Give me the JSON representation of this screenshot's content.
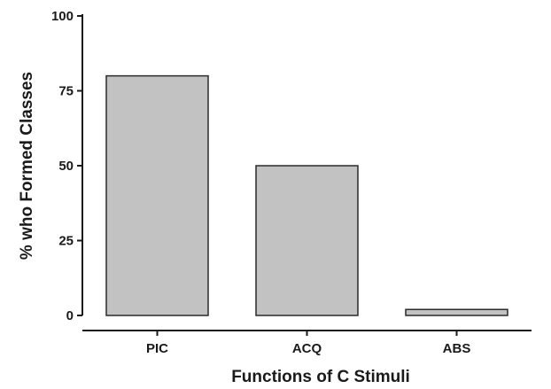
{
  "chart_data": {
    "type": "bar",
    "categories": [
      "PIC",
      "ACQ",
      "ABS"
    ],
    "values": [
      80,
      50,
      2
    ],
    "title": "",
    "xlabel": "Functions of C Stimuli",
    "ylabel": "% who Formed Classes",
    "ylim": [
      0,
      100
    ],
    "yticks": [
      "0",
      "25",
      "50",
      "75",
      "100"
    ],
    "grid": false,
    "bar_color": "#c2c2c2",
    "bar_edge_color": "#2a2a2a"
  }
}
